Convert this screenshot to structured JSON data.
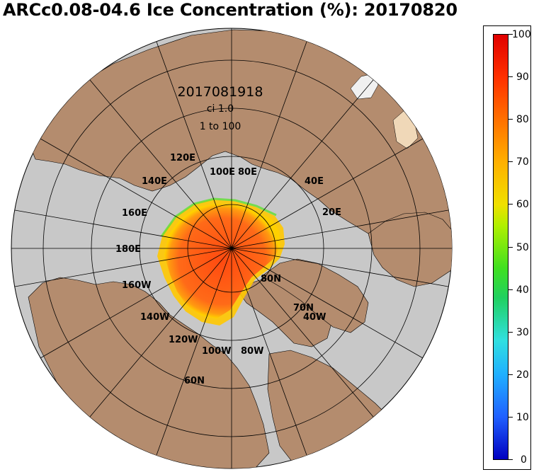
{
  "title": "ARCc0.08-04.6 Ice Concentration (%): 20170820",
  "annotation": {
    "datetime": "2017081918",
    "ci": "ci 1.0",
    "range": "1 to 100"
  },
  "longitude_labels": [
    "120E",
    "100E",
    "80E",
    "40E",
    "140E",
    "160E",
    "20E",
    "180E",
    "160W",
    "140W",
    "120W",
    "100W",
    "80W",
    "40W"
  ],
  "latitude_labels": [
    "80N",
    "70N",
    "60N"
  ],
  "colorbar": {
    "labels": [
      "100",
      "90",
      "80",
      "70",
      "60",
      "50",
      "40",
      "30",
      "20",
      "10",
      "0"
    ]
  },
  "colors": {
    "land": "#b48c6e",
    "ocean": "#c8c8c8",
    "ice_core": "#ff5a14",
    "ice_edge": "#ffc800"
  }
}
